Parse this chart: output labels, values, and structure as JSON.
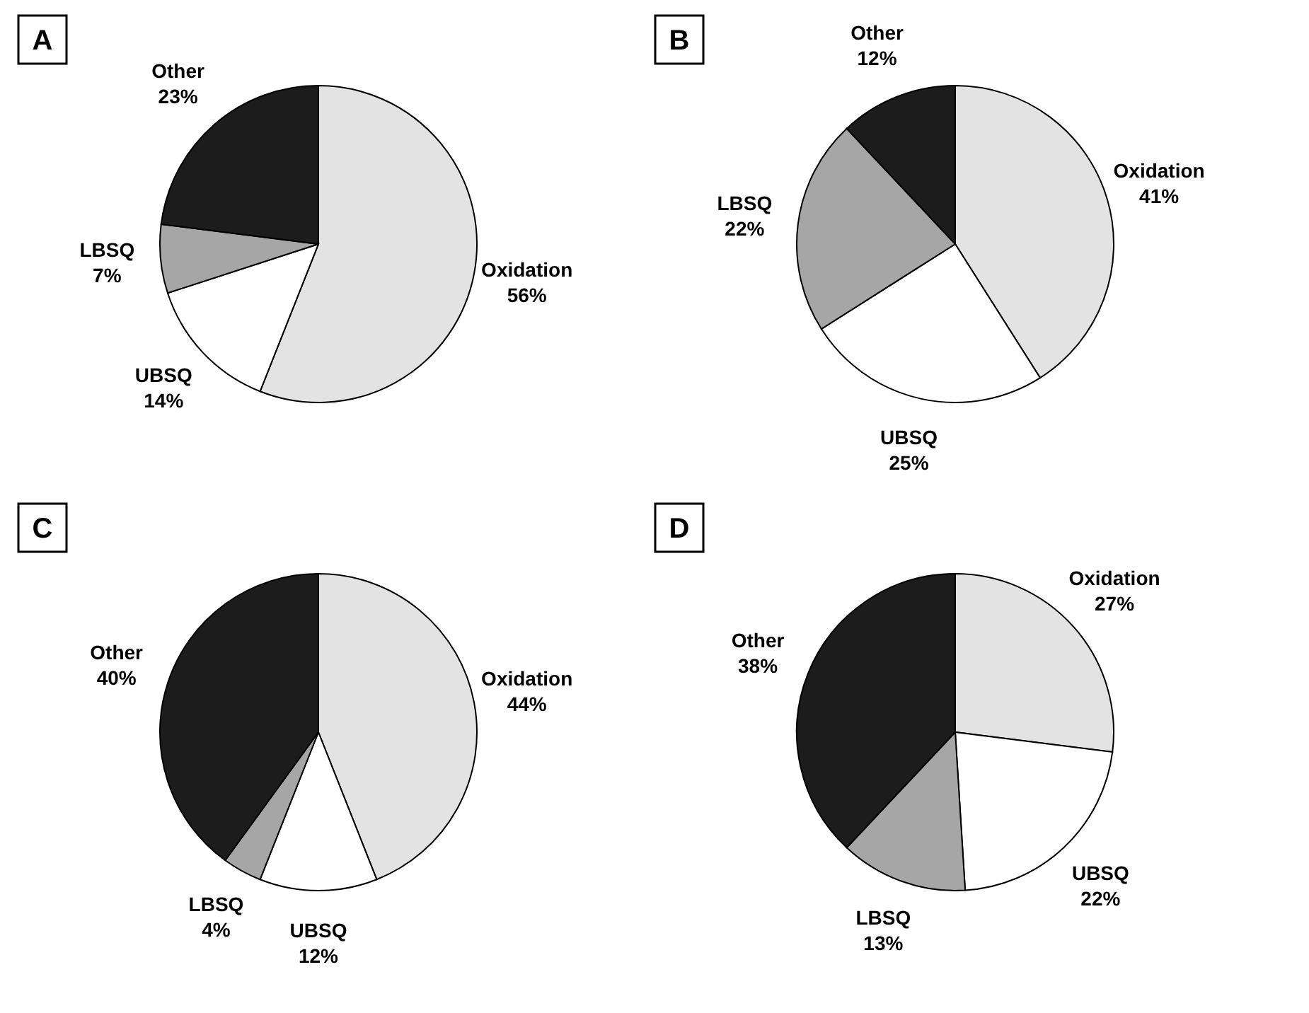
{
  "chart_data": [
    {
      "type": "pie",
      "title": "A",
      "categories": [
        "Oxidation",
        "UBSQ",
        "LBSQ",
        "Other"
      ],
      "values": [
        56,
        14,
        7,
        23
      ],
      "value_labels": [
        "56%",
        "14%",
        "7%",
        "23%"
      ],
      "colors": [
        "#e3e3e3",
        "#ffffff",
        "#a6a6a6",
        "#1c1c1c"
      ]
    },
    {
      "type": "pie",
      "title": "B",
      "categories": [
        "Oxidation",
        "UBSQ",
        "LBSQ",
        "Other"
      ],
      "values": [
        41,
        25,
        22,
        12
      ],
      "value_labels": [
        "41%",
        "25%",
        "22%",
        "12%"
      ],
      "colors": [
        "#e3e3e3",
        "#ffffff",
        "#a6a6a6",
        "#1c1c1c"
      ]
    },
    {
      "type": "pie",
      "title": "C",
      "categories": [
        "Oxidation",
        "UBSQ",
        "LBSQ",
        "Other"
      ],
      "values": [
        44,
        12,
        4,
        40
      ],
      "value_labels": [
        "44%",
        "12%",
        "4%",
        "40%"
      ],
      "colors": [
        "#e3e3e3",
        "#ffffff",
        "#a6a6a6",
        "#1c1c1c"
      ]
    },
    {
      "type": "pie",
      "title": "D",
      "categories": [
        "Oxidation",
        "UBSQ",
        "LBSQ",
        "Other"
      ],
      "values": [
        27,
        22,
        13,
        38
      ],
      "value_labels": [
        "27%",
        "22%",
        "13%",
        "38%"
      ],
      "colors": [
        "#e3e3e3",
        "#ffffff",
        "#a6a6a6",
        "#1c1c1c"
      ]
    }
  ]
}
